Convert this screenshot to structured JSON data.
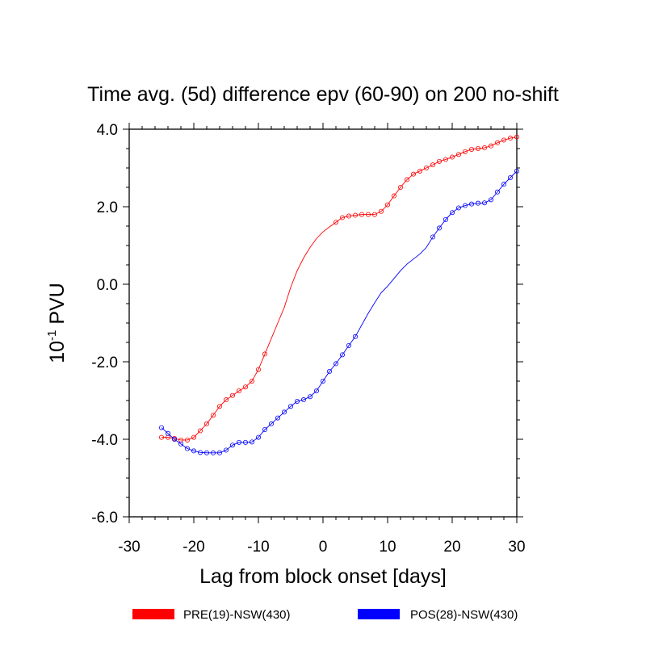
{
  "chart_data": {
    "type": "line",
    "title": "Time avg. (5d)  difference epv (60-90) on 200 no-shift",
    "xlabel": "Lag from block onset [days]",
    "ylabel_base": "10",
    "ylabel_exp": "-1",
    "ylabel_unit": "PVU",
    "xlim": [
      -30,
      30
    ],
    "ylim": [
      -6.0,
      4.0
    ],
    "xticks": [
      -30,
      -20,
      -10,
      0,
      10,
      20,
      30
    ],
    "xtick_labels": [
      "-30",
      "-20",
      "-10",
      "0",
      "10",
      "20",
      "30"
    ],
    "yticks": [
      -6.0,
      -4.0,
      -2.0,
      0.0,
      2.0,
      4.0
    ],
    "ytick_labels": [
      "-6.0",
      "-4.0",
      "-2.0",
      "0.0",
      "2.0",
      "4.0"
    ],
    "grid": false,
    "legend_position": "bottom",
    "series": [
      {
        "name": "PRE(19)-NSW(430)",
        "color": "#ff0000",
        "points": [
          [
            -25,
            -3.95
          ],
          [
            -24,
            -3.95
          ],
          [
            -23,
            -3.98
          ],
          [
            -22,
            -4.02
          ],
          [
            -21,
            -4.02
          ],
          [
            -20,
            -3.95
          ],
          [
            -19,
            -3.78
          ],
          [
            -18,
            -3.6
          ],
          [
            -17,
            -3.38
          ],
          [
            -16,
            -3.15
          ],
          [
            -15,
            -2.98
          ],
          [
            -14,
            -2.87
          ],
          [
            -13,
            -2.75
          ],
          [
            -12,
            -2.65
          ],
          [
            -11,
            -2.5
          ],
          [
            -10,
            -2.2
          ],
          [
            -9,
            -1.8
          ],
          [
            -8,
            -1.4
          ],
          [
            -7,
            -1.0
          ],
          [
            -6,
            -0.6
          ],
          [
            -5,
            -0.08
          ],
          [
            -4,
            0.35
          ],
          [
            -3,
            0.68
          ],
          [
            -2,
            0.95
          ],
          [
            -1,
            1.18
          ],
          [
            0,
            1.35
          ],
          [
            1,
            1.48
          ],
          [
            2,
            1.6
          ],
          [
            3,
            1.72
          ],
          [
            4,
            1.76
          ],
          [
            5,
            1.78
          ],
          [
            6,
            1.8
          ],
          [
            7,
            1.8
          ],
          [
            8,
            1.8
          ],
          [
            9,
            1.88
          ],
          [
            10,
            2.05
          ],
          [
            11,
            2.28
          ],
          [
            12,
            2.5
          ],
          [
            13,
            2.7
          ],
          [
            14,
            2.84
          ],
          [
            15,
            2.92
          ],
          [
            16,
            3.0
          ],
          [
            17,
            3.08
          ],
          [
            18,
            3.17
          ],
          [
            19,
            3.22
          ],
          [
            20,
            3.28
          ],
          [
            21,
            3.35
          ],
          [
            22,
            3.42
          ],
          [
            23,
            3.48
          ],
          [
            24,
            3.5
          ],
          [
            25,
            3.52
          ],
          [
            26,
            3.57
          ],
          [
            27,
            3.65
          ],
          [
            28,
            3.72
          ],
          [
            29,
            3.77
          ],
          [
            30,
            3.8
          ]
        ],
        "markers": [
          -25,
          -24,
          -23,
          -22,
          -21,
          -20,
          -19,
          -18,
          -17,
          -16,
          -15,
          -14,
          -13,
          -12,
          -11,
          -10,
          -9,
          2,
          3,
          4,
          5,
          6,
          7,
          8,
          9,
          10,
          11,
          12,
          13,
          14,
          15,
          16,
          17,
          18,
          19,
          20,
          21,
          22,
          23,
          24,
          25,
          26,
          27,
          28,
          29,
          30
        ]
      },
      {
        "name": "POS(28)-NSW(430)",
        "color": "#0000ff",
        "points": [
          [
            -25,
            -3.7
          ],
          [
            -24,
            -3.85
          ],
          [
            -23,
            -4.0
          ],
          [
            -22,
            -4.12
          ],
          [
            -21,
            -4.24
          ],
          [
            -20,
            -4.3
          ],
          [
            -19,
            -4.34
          ],
          [
            -18,
            -4.35
          ],
          [
            -17,
            -4.35
          ],
          [
            -16,
            -4.35
          ],
          [
            -15,
            -4.28
          ],
          [
            -14,
            -4.15
          ],
          [
            -13,
            -4.08
          ],
          [
            -12,
            -4.08
          ],
          [
            -11,
            -4.07
          ],
          [
            -10,
            -3.95
          ],
          [
            -9,
            -3.75
          ],
          [
            -8,
            -3.6
          ],
          [
            -7,
            -3.45
          ],
          [
            -6,
            -3.3
          ],
          [
            -5,
            -3.15
          ],
          [
            -4,
            -3.02
          ],
          [
            -3,
            -2.98
          ],
          [
            -2,
            -2.9
          ],
          [
            -1,
            -2.75
          ],
          [
            0,
            -2.5
          ],
          [
            1,
            -2.25
          ],
          [
            2,
            -2.05
          ],
          [
            3,
            -1.82
          ],
          [
            4,
            -1.58
          ],
          [
            5,
            -1.35
          ],
          [
            6,
            -1.05
          ],
          [
            7,
            -0.75
          ],
          [
            8,
            -0.48
          ],
          [
            9,
            -0.22
          ],
          [
            10,
            -0.05
          ],
          [
            11,
            0.15
          ],
          [
            12,
            0.35
          ],
          [
            13,
            0.52
          ],
          [
            14,
            0.65
          ],
          [
            15,
            0.78
          ],
          [
            16,
            0.95
          ],
          [
            17,
            1.22
          ],
          [
            18,
            1.45
          ],
          [
            19,
            1.67
          ],
          [
            20,
            1.85
          ],
          [
            21,
            1.97
          ],
          [
            22,
            2.03
          ],
          [
            23,
            2.07
          ],
          [
            24,
            2.09
          ],
          [
            25,
            2.1
          ],
          [
            26,
            2.18
          ],
          [
            27,
            2.38
          ],
          [
            28,
            2.58
          ],
          [
            29,
            2.75
          ],
          [
            30,
            2.92
          ]
        ],
        "markers": [
          -25,
          -24,
          -23,
          -22,
          -21,
          -20,
          -19,
          -18,
          -17,
          -16,
          -15,
          -14,
          -13,
          -12,
          -11,
          -10,
          -9,
          -8,
          -7,
          -6,
          -5,
          -4,
          -3,
          -2,
          -1,
          0,
          1,
          2,
          3,
          4,
          5,
          17,
          18,
          19,
          20,
          21,
          22,
          23,
          24,
          25,
          26,
          27,
          28,
          29,
          30
        ]
      }
    ]
  }
}
